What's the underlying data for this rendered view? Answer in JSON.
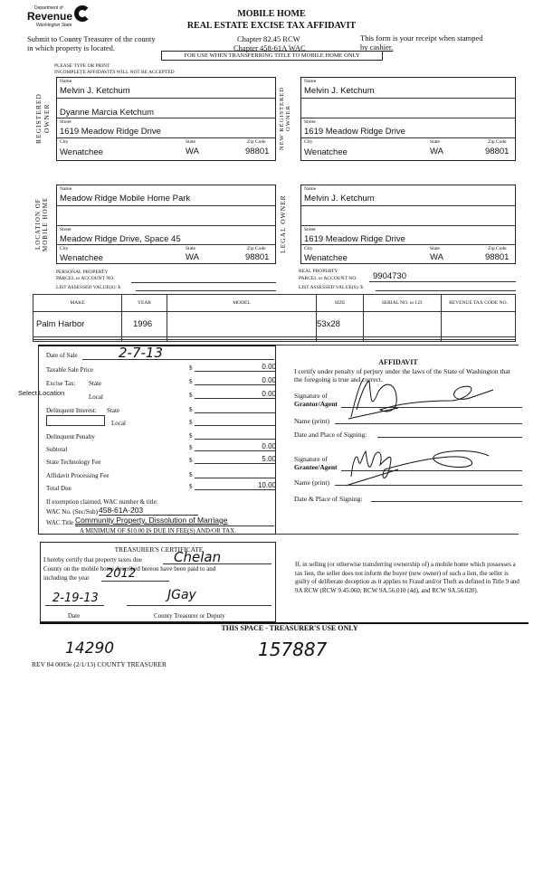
{
  "header": {
    "logo_top": "Department of",
    "logo_main": "Revenue",
    "logo_sub": "Washington State",
    "title1": "MOBILE HOME",
    "title2": "REAL ESTATE EXCISE TAX AFFIDAVIT",
    "submit": "Submit to County Treasurer of the county",
    "submit2": "in which property is located.",
    "chapter1": "Chapter 82.45 RCW",
    "chapter2": "Chapter 458-61A WAC",
    "receipt1": "This form is your receipt when stamped",
    "receipt2": "by cashier.",
    "banner": "FOR USE WHEN TRANSFERRING TITLE TO MOBILE HOME ONLY",
    "please1": "PLEASE TYPE OR PRINT",
    "please2": "INCOMPLETE AFFIDAVITS WILL NOT BE ACCEPTED"
  },
  "labels": {
    "name": "Name",
    "street": "Street",
    "city": "City",
    "state": "State",
    "zip": "Zip Code"
  },
  "registered_owner": {
    "section": "REGISTERED OWNER",
    "name": "Melvin J. Ketchum",
    "name2": "Dyanne Marcia Ketchum",
    "street": "1619 Meadow Ridge Drive",
    "city": "Wenatchee",
    "state": "WA",
    "zip": "98801"
  },
  "new_owner": {
    "section": "NEW REGISTERED OWNER",
    "name": "Melvin J. Ketchum",
    "name2": "",
    "street": "1619 Meadow Ridge Drive",
    "city": "Wenatchee",
    "state": "WA",
    "zip": "98801"
  },
  "location": {
    "section": "LOCATION OF MOBILE HOME",
    "name": "Meadow Ridge Mobile Home Park",
    "street": "Meadow Ridge Drive, Space 45",
    "city": "Wenatchee",
    "state": "WA",
    "zip": "98801"
  },
  "legal_owner": {
    "section": "LEGAL OWNER",
    "name": "Melvin J. Ketchum",
    "street": "1619 Meadow Ridge Drive",
    "city": "Wenatchee",
    "state": "WA",
    "zip": "98801"
  },
  "parcels": {
    "personal1": "PERSONAL PROPERTY",
    "personal2": "PARCEL or ACCOUNT NO.",
    "personal_value": "",
    "list_assessed": "LIST ASSESSED VALUE(S): $",
    "real1": "REAL PROPERTY",
    "real2": "PARCEL or ACCOUNT NO.",
    "real_value": "9904730"
  },
  "table": {
    "headers": [
      "MAKE",
      "YEAR",
      "MODEL",
      "SIZE",
      "SERIAL NO. or I.D.",
      "REVENUE TAX CODE NO."
    ],
    "rows": [
      [
        "Palm Harbor",
        "1996",
        "",
        "53x28",
        "",
        ""
      ],
      [
        "",
        "",
        "",
        "",
        "",
        ""
      ],
      [
        "",
        "",
        "",
        "",
        "",
        ""
      ]
    ]
  },
  "fees": {
    "date_label": "Date of Sale",
    "date_value": "2-7-13",
    "taxable": "Taxable Sale Price",
    "taxable_value": "0.00",
    "excise": "Excise Tax:",
    "state": "State",
    "state_value": "0.00",
    "select_location": "Select Location",
    "local": "Local",
    "local_value": "0.00",
    "delinquent": "Delinquent Interest:",
    "dstate": "State",
    "dlocal": "Local",
    "penalty": "Delinquent Penalty",
    "subtotal": "Subtotal",
    "subtotal_value": "0.00",
    "tech": "State Technology Fee",
    "tech_value": "5.00",
    "processing": "Affidavit Processing Fee",
    "total": "Total Due",
    "total_value": "10.00",
    "dollar": "$",
    "exemption": "If exemption claimed, WAC number & title:",
    "wac_no_label": "WAC No. (Sec/Sub)",
    "wac_no": "458-61A-203",
    "wac_title_label": "WAC Title",
    "wac_title": "Community Property, Dissolution of Marriage",
    "minimum": "A MINIMUM OF $10.00 IS DUE IN FEE(S) AND/OR TAX."
  },
  "affidavit": {
    "title": "AFFIDAVIT",
    "text": "I certify under penalty of perjury under the laws of the State of Washington that the foregoing is true and correct.",
    "sig_grantor1": "Signature of",
    "sig_grantor2": "Grantor/Agent",
    "name_print": "Name (print)",
    "date_place": "Date and Place of Signing:",
    "sig_grantee1": "Signature of",
    "sig_grantee2": "Grantee/Agent",
    "date_place2": "Date & Place of Signing:"
  },
  "treasurer": {
    "title": "TREASURER'S CERTIFICATE",
    "line1": "I hereby certify that property taxes due",
    "county": "Chelan",
    "line2": "County on the mobile home described hereon have been paid to and",
    "line3": "including the year",
    "year": "2012",
    "date": "2-19-13",
    "date_label": "Date",
    "deputy_label": "County Treasurer or Deputy",
    "signature": "JGay"
  },
  "notice": "If, in selling (or otherwise transferring ownership of) a mobile home which possesses a tax lien, the seller does not inform the buyer (new owner) of such a lien, the seller is guilty of deliberate deception as it applies to Fraud and/or Theft as defined in Title 9 and 9A RCW (RCW 9.45.060, RCW 9A.56.010 (4d), and RCW 9A.56.020).",
  "treasurer_use": "THIS SPACE - TREASURER'S USE ONLY",
  "handwritten": {
    "n1": "14290",
    "n2": "157887"
  },
  "footer": "REV 84 0003e (2/1/13) COUNTY TREASURER"
}
